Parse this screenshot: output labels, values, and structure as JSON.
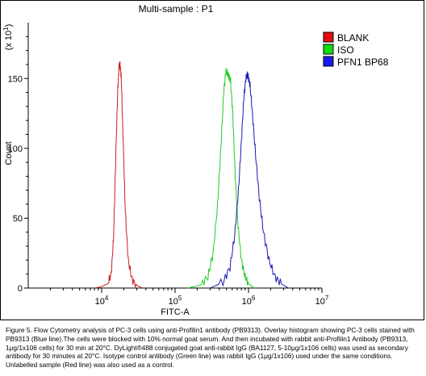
{
  "chart_data": {
    "type": "line",
    "title": "Multi-sample : P1",
    "xlabel": "FITC-A",
    "ylabel": "Count",
    "y_multiplier_label": "(x 10",
    "y_multiplier_exponent": "1",
    "x_scale": "log",
    "xlim": [
      1000,
      10000000
    ],
    "ylim": [
      0,
      190
    ],
    "x_ticks": [
      {
        "value": 10000,
        "base": "10",
        "exp": "4"
      },
      {
        "value": 100000,
        "base": "10",
        "exp": "5"
      },
      {
        "value": 1000000,
        "base": "10",
        "exp": "6"
      },
      {
        "value": 10000000,
        "base": "10",
        "exp": "7"
      }
    ],
    "y_ticks": [
      0,
      50,
      100,
      150
    ],
    "grid": false,
    "legend_position": "right",
    "series": [
      {
        "name": "BLANK",
        "color": "#cc1f1f",
        "swatch": "#e01010",
        "x": [
          8000,
          10000,
          12000,
          13500,
          14500,
          15500,
          16500,
          17200,
          17800,
          18500,
          19500,
          21000,
          23000,
          26000,
          30000,
          36000
        ],
        "y": [
          0,
          1,
          3,
          10,
          35,
          90,
          140,
          158,
          160,
          150,
          110,
          55,
          20,
          6,
          2,
          0
        ]
      },
      {
        "name": "ISO",
        "color": "#22cc22",
        "swatch": "#10dd10",
        "x": [
          150000,
          220000,
          280000,
          330000,
          380000,
          420000,
          460000,
          490000,
          530000,
          570000,
          610000,
          660000,
          720000,
          800000,
          900000,
          1000000,
          1200000
        ],
        "y": [
          0,
          2,
          8,
          25,
          60,
          100,
          140,
          155,
          153,
          148,
          125,
          80,
          45,
          20,
          8,
          3,
          0
        ]
      },
      {
        "name": "PFN1 BP68",
        "color": "#1b1bb5",
        "swatch": "#1a1aee",
        "x": [
          300000,
          450000,
          560000,
          650000,
          730000,
          800000,
          860000,
          920000,
          980000,
          1050000,
          1130000,
          1250000,
          1400000,
          1600000,
          1900000,
          2300000,
          2800000,
          3500000
        ],
        "y": [
          0,
          4,
          15,
          38,
          70,
          105,
          135,
          150,
          153,
          145,
          125,
          95,
          65,
          40,
          20,
          8,
          3,
          0
        ]
      }
    ]
  },
  "caption": "Figure 5. Flow Cytometry analysis of PC-3 cells using anti-Profilin1 antibody (PB9313).  Overlay histogram showing PC-3 cells stained with PB9313 (Blue line).The cells were blocked with 10% normal goat serum.  And then incubated with rabbit anti-Profilin1 Antibody (PB9313, 1μg/1x106 cells) for 30 min at 20°C. DyLight®488 conjugated goat anti-rabbit IgG (BA1127, 5-10μg/1x106 cells) was used as secondary antibody for 30 minutes at 20°C. Isotype control antibody (Green line) was rabbit IgG (1μg/1x106) used under the same conditions. Unlabelled sample (Red line) was also used as a control."
}
